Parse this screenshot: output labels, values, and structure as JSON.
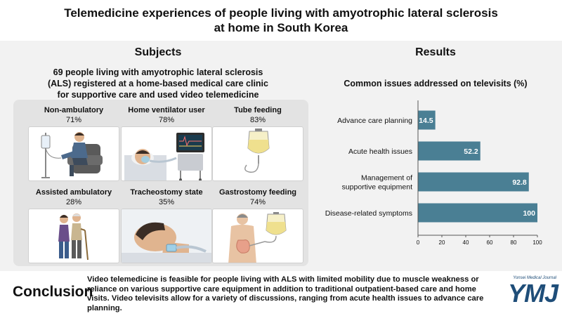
{
  "title_line1": "Telemedicine experiences of people living with amyotrophic lateral sclerosis",
  "title_line2": "at home in South Korea",
  "subjects": {
    "heading": "Subjects",
    "description": "69 people living with amyotrophic lateral sclerosis (ALS) registered at a home-based medical care clinic for supportive care and used video telemedicine",
    "cards": [
      {
        "label": "Non-ambulatory",
        "percent": "71%",
        "icon": "wheelchair-patient-icon"
      },
      {
        "label": "Home ventilator user",
        "percent": "78%",
        "icon": "ventilator-icon"
      },
      {
        "label": "Tube feeding",
        "percent": "83%",
        "icon": "feeding-bag-icon"
      },
      {
        "label": "Assisted ambulatory",
        "percent": "28%",
        "icon": "assisted-walking-icon"
      },
      {
        "label": "Tracheostomy state",
        "percent": "35%",
        "icon": "tracheostomy-icon"
      },
      {
        "label": "Gastrostomy feeding",
        "percent": "74%",
        "icon": "gastrostomy-icon"
      }
    ]
  },
  "results": {
    "heading": "Results"
  },
  "chart_data": {
    "type": "bar",
    "orientation": "horizontal",
    "title": "Common issues addressed on televisits (%)",
    "categories": [
      "Advance care planning",
      "Acute health issues",
      "Management of supportive equipment",
      "Disease-related symptoms"
    ],
    "category_lines": [
      [
        "Advance care planning"
      ],
      [
        "Acute health issues"
      ],
      [
        "Management of",
        "supportive equipment"
      ],
      [
        "Disease-related symptoms"
      ]
    ],
    "values": [
      14.5,
      52.2,
      92.8,
      100
    ],
    "value_labels": [
      "14.5",
      "52.2",
      "92.8",
      "100"
    ],
    "xlim": [
      0,
      100
    ],
    "xticks": [
      0,
      20,
      40,
      60,
      80,
      100
    ],
    "grid": false,
    "bar_color": "#4a7f94",
    "label_color": "#ffffff"
  },
  "conclusion": {
    "heading": "Conclusion",
    "text": "Video telemedicine is feasible for people living with ALS with limited mobility due to muscle weakness or reliance on various supportive care equipment in addition to traditional outpatient-based care and home visits. Video televisits allow for a variety of discussions, ranging from acute health issues to advance care planning."
  },
  "journal": {
    "caption": "Yonsei Medical Journal",
    "logo_text": "YMJ",
    "color": "#1f4e79"
  }
}
